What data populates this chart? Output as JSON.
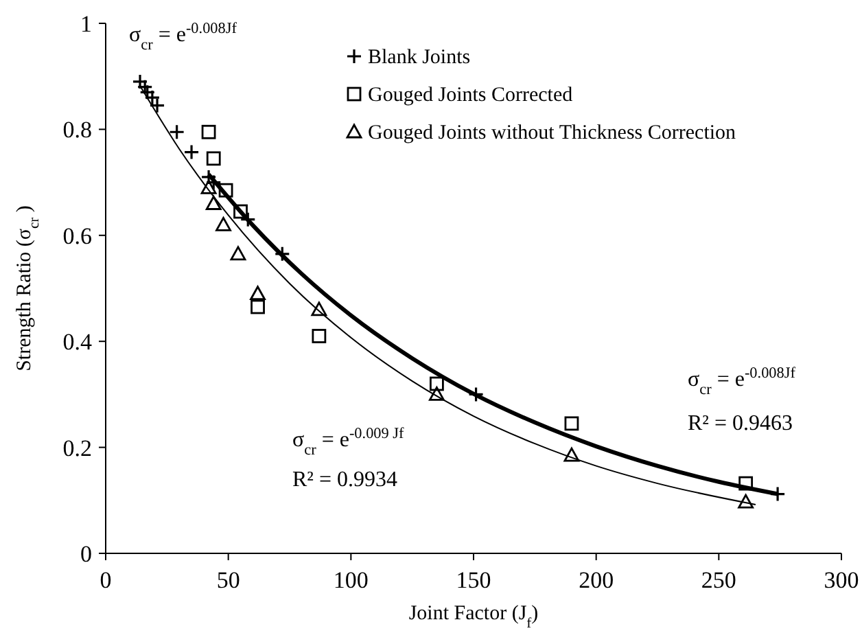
{
  "chart_data": {
    "type": "scatter",
    "xlabel": "Joint Factor (J$_{f}$)",
    "ylabel": "Strength Ratio (σ$_{cr}$ )",
    "xlim": [
      0,
      300
    ],
    "xticks": [
      0,
      50,
      100,
      150,
      200,
      250,
      300
    ],
    "ylim": [
      0,
      1
    ],
    "yticks": [
      0,
      0.2,
      0.4,
      0.6,
      0.8,
      1
    ],
    "grid": false,
    "legend": "top right",
    "series": [
      {
        "name": "Blank Joints",
        "color": "#000000",
        "marker": "cross",
        "x": [
          14,
          16,
          17,
          19,
          21,
          29,
          35,
          42,
          44,
          58,
          72,
          151,
          274
        ],
        "values": [
          0.89,
          0.88,
          0.87,
          0.86,
          0.845,
          0.795,
          0.757,
          0.71,
          0.7,
          0.63,
          0.565,
          0.3,
          0.112
        ]
      },
      {
        "name": "Gouged Joints Corrected",
        "color": "#000000",
        "marker": "square",
        "x": [
          42,
          44,
          49,
          55,
          62,
          87,
          135,
          190,
          261
        ],
        "values": [
          0.795,
          0.745,
          0.685,
          0.645,
          0.465,
          0.41,
          0.32,
          0.245,
          0.132
        ]
      },
      {
        "name": "Gouged Joints without Thickness Correction",
        "color": "#000000",
        "marker": "triangle",
        "x": [
          42,
          44,
          48,
          54,
          62,
          87,
          135,
          190,
          261
        ],
        "values": [
          0.69,
          0.66,
          0.62,
          0.565,
          0.49,
          0.46,
          0.3,
          0.185,
          0.097
        ]
      },
      {
        "type": "line",
        "color": "#000000",
        "marker": "none",
        "x": [
          42,
          60,
          80,
          100,
          125,
          150,
          175,
          200,
          225,
          250,
          274
        ],
        "values": [
          0.715,
          0.619,
          0.527,
          0.449,
          0.368,
          0.301,
          0.247,
          0.202,
          0.165,
          0.135,
          0.112
        ]
      },
      {
        "type": "line",
        "color": "#000000",
        "marker": "none",
        "x": [
          14,
          30,
          50,
          75,
          100,
          125,
          150,
          175,
          200,
          225,
          265
        ],
        "values": [
          0.882,
          0.763,
          0.638,
          0.509,
          0.407,
          0.325,
          0.259,
          0.207,
          0.165,
          0.132,
          0.092
        ]
      }
    ],
    "annotations": [
      "σ$_{cr}$ = e$^{-0.008Jf}$",
      "σ$_{cr}$ = e$^{-0.008Jf}$",
      "R² = 0.9463",
      "σ$_{cr}$ = e$^{-0.009 Jf}$",
      "R² = 0.9934"
    ]
  }
}
